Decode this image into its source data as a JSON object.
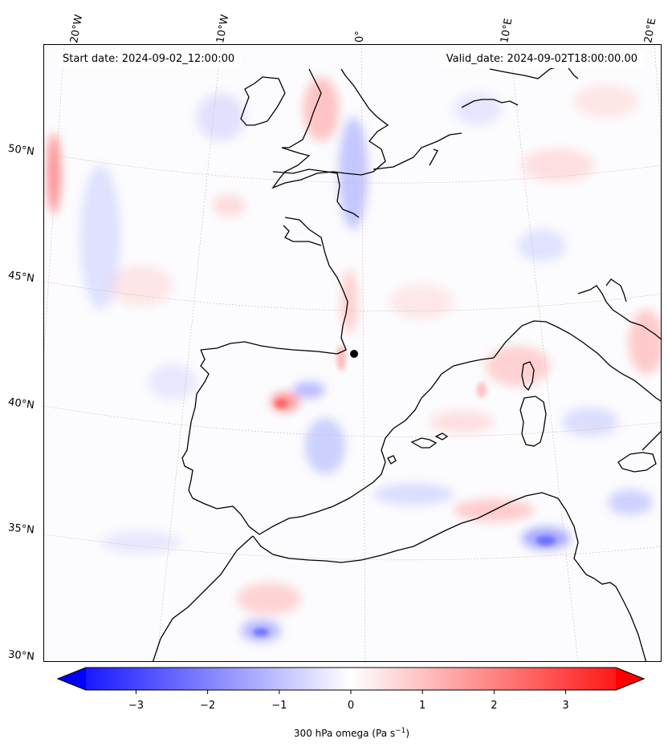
{
  "info": {
    "start": "Start date: 2024-09-02_12:00:00",
    "valid": "Valid_date: 2024-09-02T18:00:00.00"
  },
  "longitude_labels": [
    "20°W",
    "10°W",
    "0°",
    "10°E",
    "20°E"
  ],
  "latitude_labels": [
    "50°N",
    "45°N",
    "40°N",
    "35°N",
    "30°N"
  ],
  "colorbar": {
    "label_main": "300 hPa omega (Pa s",
    "label_exp": "−1",
    "label_close": ")",
    "min": -3.7,
    "max": 3.7,
    "ticks": [
      "−3",
      "−2",
      "−1",
      "0",
      "1",
      "2",
      "3"
    ],
    "tick_values": [
      -3,
      -2,
      -1,
      0,
      1,
      2,
      3
    ],
    "colors": {
      "low": "#0000ff",
      "mid": "#ffffff",
      "high": "#ff0000"
    }
  }
}
